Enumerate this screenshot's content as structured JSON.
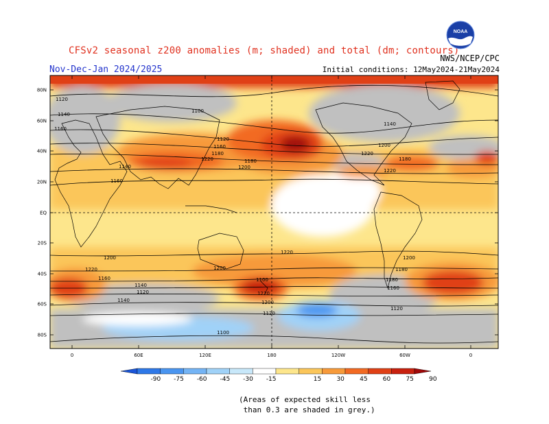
{
  "header": {
    "title": "CFSv2 seasonal z200 anomalies (m; shaded) and total (dm; contours)",
    "period": "Nov-Dec-Jan 2024/2025",
    "agency": "NWS/NCEP/CPC",
    "initial_conditions": "Initial conditions: 12May2024-21May2024",
    "logo_text": "NOAA"
  },
  "axes": {
    "lat_labels": [
      "80N",
      "60N",
      "40N",
      "20N",
      "EQ",
      "20S",
      "40S",
      "60S",
      "80S"
    ],
    "lon_labels": [
      "0",
      "60E",
      "120E",
      "180",
      "120W",
      "60W",
      "0"
    ]
  },
  "contour_labels": [
    "1120",
    "1140",
    "1160",
    "1100",
    "1120",
    "1140",
    "1160",
    "1180",
    "1200",
    "1220",
    "1140",
    "1160",
    "1180",
    "1200",
    "1220",
    "1220",
    "1180",
    "1200",
    "1220",
    "1200",
    "1220",
    "1200",
    "1180",
    "1160",
    "1140",
    "1120",
    "1100",
    "1220",
    "1200",
    "1180",
    "1160",
    "1140",
    "1120",
    "1100",
    "1120"
  ],
  "colorbar": {
    "labels": [
      "-90",
      "-75",
      "-60",
      "-45",
      "-30",
      "-15",
      "15",
      "30",
      "45",
      "60",
      "75",
      "90"
    ],
    "colors": [
      "#1a55d8",
      "#2e78e8",
      "#4a95f0",
      "#74b4f5",
      "#a0d2f8",
      "#c8e8fa",
      "#ffffff",
      "#fde68c",
      "#fbc65a",
      "#f79a3a",
      "#f26a22",
      "#e04016",
      "#c8200e",
      "#a00808"
    ]
  },
  "map_colors": {
    "grey": "#c0c0c0",
    "pale_yellow": "#fde68c",
    "yellow": "#fbc65a",
    "orange": "#f79a3a",
    "dark_orange": "#f26a22",
    "red": "#e04016",
    "dark_red": "#c8200e",
    "crimson": "#a00808",
    "light_blue": "#a0d2f8",
    "pale_blue": "#c8e8fa"
  },
  "note": "(Areas of expected skill less\n than 0.3 are shaded in grey.)"
}
